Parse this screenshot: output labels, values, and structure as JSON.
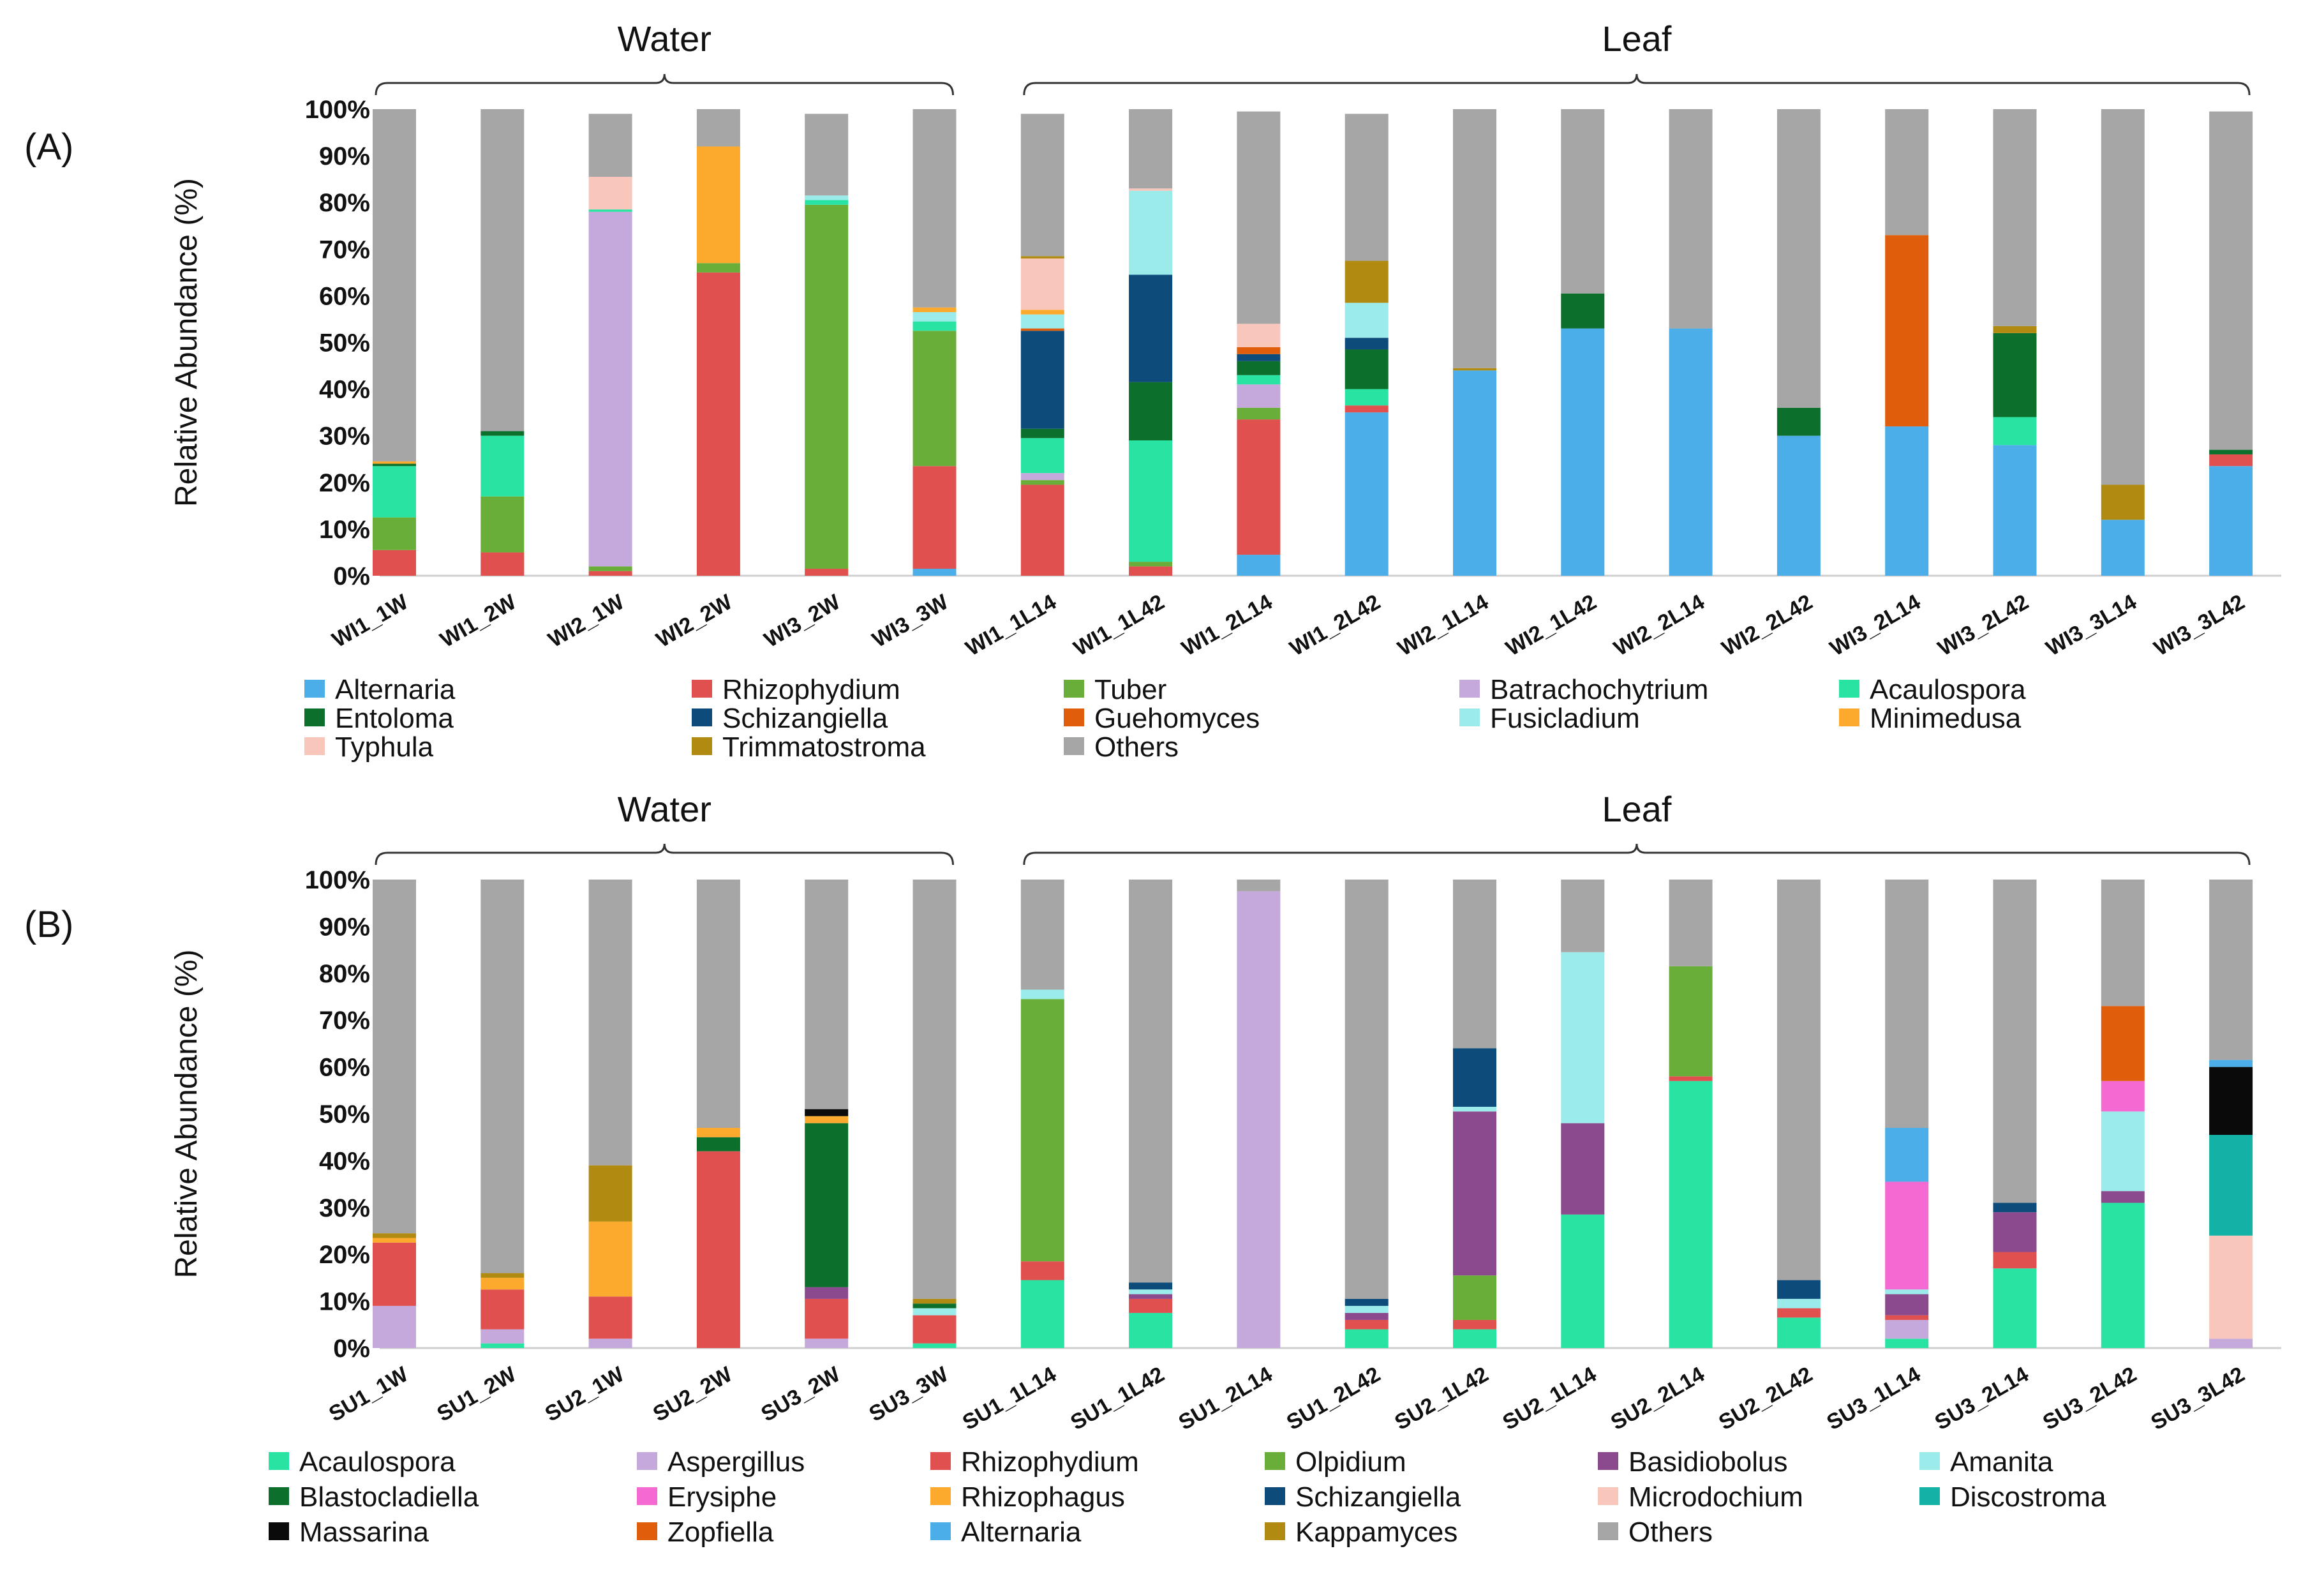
{
  "chart_data": [
    {
      "type": "bar",
      "stacked": true,
      "panel_label": "(A)",
      "ylabel": "Relative Abundance (%)",
      "ylim": [
        0,
        100
      ],
      "yticks": [
        "0%",
        "10%",
        "20%",
        "30%",
        "40%",
        "50%",
        "60%",
        "70%",
        "80%",
        "90%",
        "100%"
      ],
      "groups": [
        {
          "label": "Water",
          "from": 0,
          "to": 5
        },
        {
          "label": "Leaf",
          "from": 6,
          "to": 17
        }
      ],
      "categories": [
        "WI1_1W",
        "WI1_2W",
        "WI2_1W",
        "WI2_2W",
        "WI3_2W",
        "WI3_3W",
        "WI1_1L14",
        "WI1_1L42",
        "WI1_2L14",
        "WI1_2L42",
        "WI2_1L14",
        "WI2_1L42",
        "WI2_2L14",
        "WI2_2L42",
        "WI3_2L14",
        "WI3_2L42",
        "WI3_3L14",
        "WI3_3L42"
      ],
      "series": [
        {
          "name": "Alternaria",
          "color": "#4BAEE8",
          "values": [
            0,
            0,
            0,
            0,
            0,
            1.5,
            0,
            0,
            4.5,
            35,
            44,
            53,
            53,
            30,
            32,
            28,
            12,
            23.5
          ]
        },
        {
          "name": "Rhizophydium",
          "color": "#E0504F",
          "values": [
            5.5,
            5,
            1,
            65,
            1.5,
            22,
            19.5,
            2,
            29,
            1.5,
            0,
            0,
            0,
            0,
            0,
            0,
            0,
            2.5
          ]
        },
        {
          "name": "Tuber",
          "color": "#6AAE3A",
          "values": [
            7,
            12,
            1,
            2,
            78,
            29,
            1,
            1,
            2.5,
            0,
            0,
            0,
            0,
            0,
            0,
            0,
            0,
            0
          ]
        },
        {
          "name": "Batrachochytrium",
          "color": "#C6A9DC",
          "values": [
            0,
            0,
            76,
            0,
            0,
            0,
            1.5,
            0,
            5,
            0,
            0,
            0,
            0,
            0,
            0,
            0,
            0,
            0
          ]
        },
        {
          "name": "Acaulospora",
          "color": "#29E3A3",
          "values": [
            11,
            13,
            0.5,
            0,
            1,
            2,
            7.5,
            26,
            2,
            3.5,
            0,
            0,
            0,
            0,
            0,
            6,
            0,
            0
          ]
        },
        {
          "name": "Entoloma",
          "color": "#0D6F2C",
          "values": [
            0.5,
            1,
            0,
            0,
            0,
            0,
            2,
            12.5,
            3,
            8.5,
            0,
            7.5,
            0,
            6,
            0,
            18,
            0,
            1
          ]
        },
        {
          "name": "Schizangiella",
          "color": "#0D4C7A",
          "values": [
            0,
            0,
            0,
            0,
            0,
            0,
            21,
            23,
            1.5,
            2.5,
            0,
            0,
            0,
            0,
            0,
            0,
            0,
            0
          ]
        },
        {
          "name": "Guehomyces",
          "color": "#E05E0B",
          "values": [
            0,
            0,
            0,
            0,
            0,
            0,
            0.5,
            0,
            1.5,
            0,
            0,
            0,
            0,
            0,
            41,
            0,
            0,
            0
          ]
        },
        {
          "name": "Fusicladium",
          "color": "#9AEBEA",
          "values": [
            0,
            0,
            0,
            0,
            1,
            2,
            3,
            18,
            0,
            7.5,
            0,
            0,
            0,
            0,
            0,
            0,
            0,
            0
          ]
        },
        {
          "name": "Minimedusa",
          "color": "#FCAA2D",
          "values": [
            0.5,
            0,
            0,
            25,
            0,
            1,
            1,
            0,
            0,
            0,
            0,
            0,
            0,
            0,
            0,
            0,
            0,
            0
          ]
        },
        {
          "name": "Typhula",
          "color": "#F9C6BC",
          "values": [
            0,
            0,
            7,
            0,
            0,
            0,
            11,
            0.5,
            5,
            0,
            0,
            0,
            0,
            0,
            0,
            0,
            0,
            0
          ]
        },
        {
          "name": "Trimmatostroma",
          "color": "#B08A11",
          "values": [
            0,
            0,
            0,
            0,
            0,
            0,
            0.5,
            0,
            0,
            9,
            0.5,
            0,
            0,
            0,
            0,
            1.5,
            7.5,
            0
          ]
        },
        {
          "name": "Others",
          "color": "#A6A6A6",
          "values": [
            75.5,
            69,
            13.5,
            8,
            17.5,
            42.5,
            30.5,
            17,
            45.5,
            31.5,
            55.5,
            39.5,
            47,
            64,
            27,
            46.5,
            80.5,
            72.5
          ]
        }
      ],
      "legend": [
        "Alternaria",
        "Rhizophydium",
        "Tuber",
        "Batrachochytrium",
        "Acaulospora",
        "Entoloma",
        "Schizangiella",
        "Guehomyces",
        "Fusicladium",
        "Minimedusa",
        "Typhula",
        "Trimmatostroma",
        "Others"
      ]
    },
    {
      "type": "bar",
      "stacked": true,
      "panel_label": "(B)",
      "ylabel": "Relative Abundance (%)",
      "ylim": [
        0,
        100
      ],
      "yticks": [
        "0%",
        "10%",
        "20%",
        "30%",
        "40%",
        "50%",
        "60%",
        "70%",
        "80%",
        "90%",
        "100%"
      ],
      "groups": [
        {
          "label": "Water",
          "from": 0,
          "to": 5
        },
        {
          "label": "Leaf",
          "from": 6,
          "to": 17
        }
      ],
      "categories": [
        "SU1_1W",
        "SU1_2W",
        "SU2_1W",
        "SU2_2W",
        "SU3_2W",
        "SU3_3W",
        "SU1_1L14",
        "SU1_1L42",
        "SU1_2L14",
        "SU1_2L42",
        "SU2_1L42",
        "SU2_1L14",
        "SU2_2L14",
        "SU2_2L42",
        "SU3_1L14",
        "SU3_2L14",
        "SU3_2L42",
        "SU3_3L42"
      ],
      "series": [
        {
          "name": "Acaulospora",
          "color": "#29E3A3",
          "values": [
            0,
            1,
            0,
            0,
            0,
            1,
            14.5,
            7.5,
            0,
            4,
            4,
            28.5,
            57,
            6.5,
            2,
            17,
            31,
            0
          ]
        },
        {
          "name": "Aspergillus",
          "color": "#C6A9DC",
          "values": [
            9,
            3,
            2,
            0,
            2,
            0,
            0,
            0,
            97.5,
            0,
            0,
            0,
            0,
            0,
            4,
            0,
            0,
            2
          ]
        },
        {
          "name": "Rhizophydium",
          "color": "#E0504F",
          "values": [
            13.5,
            8.5,
            9,
            42,
            8.5,
            6,
            4,
            3,
            0,
            2,
            2,
            0,
            1,
            2,
            1,
            3.5,
            0,
            0
          ]
        },
        {
          "name": "Olpidium",
          "color": "#6AAE3A",
          "values": [
            0,
            0,
            0,
            0,
            0,
            0,
            56,
            0,
            0,
            0,
            9.5,
            0,
            23.5,
            0,
            0,
            0,
            0,
            0
          ]
        },
        {
          "name": "Basidiobolus",
          "color": "#8B4A8E",
          "values": [
            0,
            0,
            0,
            0,
            2.5,
            0,
            0,
            1,
            0,
            1.5,
            35,
            19.5,
            0,
            0,
            4.5,
            8.5,
            2.5,
            0
          ]
        },
        {
          "name": "Amanita",
          "color": "#9AEBEA",
          "values": [
            0,
            0,
            0,
            0,
            0,
            1.5,
            2,
            1,
            0,
            1.5,
            1,
            36.5,
            0,
            2,
            1,
            0,
            17,
            0
          ]
        },
        {
          "name": "Blastocladiella",
          "color": "#0D6F2C",
          "values": [
            0,
            0,
            0,
            3,
            35,
            1,
            0,
            0,
            0,
            0,
            0,
            0,
            0,
            0,
            0,
            0,
            0,
            0
          ]
        },
        {
          "name": "Erysiphe",
          "color": "#F46AD2",
          "values": [
            0,
            0,
            0,
            0,
            0,
            0,
            0,
            0,
            0,
            0,
            0,
            0,
            0,
            0,
            23,
            0,
            6.5,
            0
          ]
        },
        {
          "name": "Rhizophagus",
          "color": "#FCAA2D",
          "values": [
            1,
            2.5,
            16,
            2,
            1.5,
            0,
            0,
            0,
            0,
            0,
            0,
            0,
            0,
            0,
            0,
            0,
            0,
            0
          ]
        },
        {
          "name": "Schizangiella",
          "color": "#0D4C7A",
          "values": [
            0,
            0,
            0,
            0,
            0,
            0,
            0,
            1.5,
            0,
            1.5,
            12.5,
            0,
            0,
            4,
            0,
            2,
            0,
            0
          ]
        },
        {
          "name": "Microdochium",
          "color": "#F9C6BC",
          "values": [
            0,
            0,
            0,
            0,
            0,
            0,
            0,
            0,
            0,
            0,
            0,
            0,
            0,
            0,
            0,
            0,
            0,
            22
          ]
        },
        {
          "name": "Discostroma",
          "color": "#14B2A6",
          "values": [
            0,
            0,
            0,
            0,
            0,
            0,
            0,
            0,
            0,
            0,
            0,
            0,
            0,
            0,
            0,
            0,
            0,
            21.5
          ]
        },
        {
          "name": "Massarina",
          "color": "#0A0A0A",
          "values": [
            0,
            0,
            0,
            0,
            1.5,
            0,
            0,
            0,
            0,
            0,
            0,
            0,
            0,
            0,
            0,
            0,
            0,
            14.5
          ]
        },
        {
          "name": "Zopfiella",
          "color": "#E05E0B",
          "values": [
            0,
            0,
            0,
            0,
            0,
            0,
            0,
            0,
            0,
            0,
            0,
            0,
            0,
            0,
            0,
            0,
            16,
            0
          ]
        },
        {
          "name": "Alternaria",
          "color": "#4BAEE8",
          "values": [
            0,
            0,
            0,
            0,
            0,
            0,
            0,
            0,
            0,
            0,
            0,
            0,
            0,
            0,
            11.5,
            0,
            0,
            1.5
          ]
        },
        {
          "name": "Kappamyces",
          "color": "#B08A11",
          "values": [
            1,
            1,
            12,
            0,
            0,
            1,
            0,
            0,
            0,
            0,
            0,
            0,
            0,
            0,
            0,
            0,
            0,
            0
          ]
        },
        {
          "name": "Others",
          "color": "#A6A6A6",
          "values": [
            75.5,
            84,
            61,
            53,
            49,
            89.5,
            23.5,
            86,
            2.5,
            89.5,
            36,
            15.5,
            18.5,
            85.5,
            53,
            69,
            27,
            38.5
          ]
        }
      ],
      "legend": [
        "Acaulospora",
        "Aspergillus",
        "Rhizophydium",
        "Olpidium",
        "Basidiobolus",
        "Amanita",
        "Blastocladiella",
        "Erysiphe",
        "Rhizophagus",
        "Schizangiella",
        "Microdochium",
        "Discostroma",
        "Massarina",
        "Zopfiella",
        "Alternaria",
        "Kappamyces",
        "Others"
      ]
    }
  ]
}
